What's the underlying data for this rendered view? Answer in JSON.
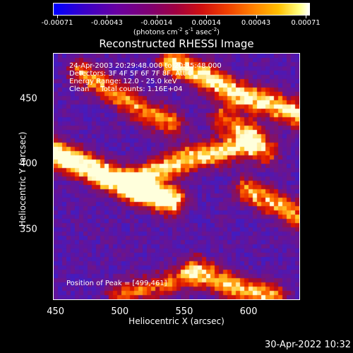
{
  "chart_data": {
    "type": "heatmap",
    "title": "Reconstructed RHESSI Image",
    "xlabel": "Heliocentric X (arcsec)",
    "ylabel": "Heliocentric Y (arcsec)",
    "x_ticks": [
      "450",
      "500",
      "550",
      "600"
    ],
    "y_ticks": [
      "450",
      "400",
      "350"
    ],
    "xlim": [
      448,
      640
    ],
    "ylim": [
      296,
      485
    ],
    "colorbar": {
      "tick_labels": [
        "-0.00071",
        "-0.00043",
        "-0.00014",
        "0.00014",
        "0.00043",
        "0.00071"
      ],
      "units_prefix": "(photons cm",
      "units_exp1": "-2",
      "units_mid": " s",
      "units_exp2": "-1",
      "units_mid2": " asec",
      "units_exp3": "-2",
      "units_suffix": ")",
      "range": [
        -0.00071,
        0.00071
      ]
    },
    "annotations": {
      "time": "24-Apr-2003 20:29:48.000 to 20:35:48.000",
      "detectors": "Detectors: 3F 4F 5F 6F 7F 8F, Att 0",
      "energy": "Energy Range: 12.0 - 25.0 keV",
      "clean": "Clean     Total counts: 1.16E+04",
      "peak": "Position of Peak = [499,461]"
    },
    "ridges": [
      {
        "x": [
          448,
          470,
          490,
          505,
          520,
          540
        ],
        "y": [
          408,
          400,
          390,
          384,
          378,
          372
        ],
        "peak": 1.0
      },
      {
        "x": [
          510,
          530,
          555,
          580,
          600
        ],
        "y": [
          385,
          395,
          405,
          410,
          415
        ],
        "peak": 0.7
      },
      {
        "x": [
          540,
          565,
          590,
          620,
          640
        ],
        "y": [
          478,
          468,
          455,
          445,
          438
        ],
        "peak": 0.75
      },
      {
        "x": [
          470,
          495,
          520,
          540
        ],
        "y": [
          470,
          455,
          440,
          432
        ],
        "peak": 0.55
      },
      {
        "x": [
          600,
          620,
          640
        ],
        "y": [
          380,
          370,
          360
        ],
        "peak": 0.6
      },
      {
        "x": [
          560,
          590,
          620
        ],
        "y": [
          318,
          305,
          298
        ],
        "peak": 0.65
      },
      {
        "x": [
          500,
          525,
          550
        ],
        "y": [
          300,
          305,
          312
        ],
        "peak": 0.45
      },
      {
        "x": [
          580,
          600,
          615
        ],
        "y": [
          435,
          425,
          410
        ],
        "peak": 0.5
      }
    ]
  },
  "timestamp": "30-Apr-2022 10:32"
}
